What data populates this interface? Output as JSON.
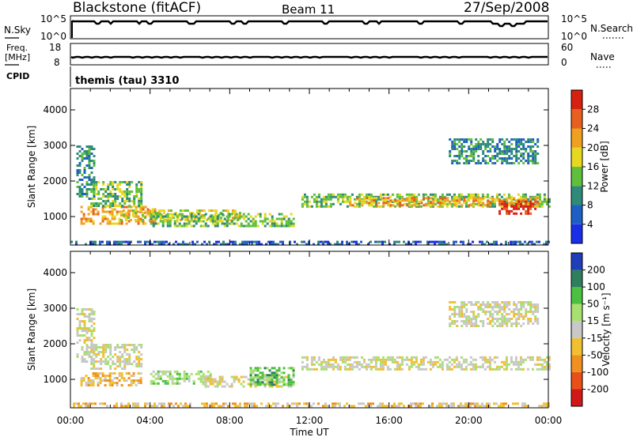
{
  "header": {
    "station": "Blackstone (fitACF)",
    "beam": "Beam 11",
    "date": "27/Sep/2008"
  },
  "top_panels": {
    "nsky_label": "N.Sky",
    "nsky_ticks": [
      "10^5",
      "10^0"
    ],
    "nsearch_label": "N.Search",
    "nsearch_ticks": [
      "10^5",
      "10^0"
    ],
    "freq_label_1": "Freq.",
    "freq_label_2": "[MHz]",
    "freq_ticks": [
      "18",
      "8"
    ],
    "nave_label": "Nave",
    "nave_ticks": [
      "60",
      "0"
    ],
    "cpid_label": "CPID",
    "cpid_text": "themis (tau) 3310"
  },
  "chart_data": [
    {
      "type": "heatmap",
      "name": "power",
      "ylabel": "Slant Range [km]",
      "xlabel": "Time UT",
      "ylim": [
        200,
        4600
      ],
      "yticks": [
        "1000",
        "2000",
        "3000",
        "4000"
      ],
      "xticks": [
        "00:00",
        "04:00",
        "08:00",
        "12:00",
        "16:00",
        "20:00",
        "00:00"
      ],
      "colorbar": {
        "label": "Power [dB]",
        "ticks": [
          "4",
          "8",
          "12",
          "16",
          "20",
          "24",
          "28"
        ],
        "colors": [
          "#1a2ee8",
          "#1f5fc4",
          "#2f8a7a",
          "#5fbf3c",
          "#e6d820",
          "#f0a020",
          "#e86020",
          "#d62010"
        ]
      },
      "regions": [
        {
          "t0": 0.3,
          "t1": 1.2,
          "r0": 1500,
          "r1": 3000,
          "level": 2
        },
        {
          "t0": 0.5,
          "t1": 4.2,
          "r0": 800,
          "r1": 1300,
          "level": 5
        },
        {
          "t0": 1.0,
          "t1": 3.6,
          "r0": 1300,
          "r1": 2000,
          "level": 3
        },
        {
          "t0": 2.5,
          "t1": 8.5,
          "r0": 900,
          "r1": 1200,
          "level": 4
        },
        {
          "t0": 4.0,
          "t1": 11.2,
          "r0": 750,
          "r1": 1100,
          "level": 3
        },
        {
          "t0": 11.6,
          "t1": 24.0,
          "r0": 1250,
          "r1": 1650,
          "level": 3
        },
        {
          "t0": 14.0,
          "t1": 23.5,
          "r0": 1300,
          "r1": 1550,
          "level": 5
        },
        {
          "t0": 21.5,
          "t1": 23.3,
          "r0": 1050,
          "r1": 1450,
          "level": 7
        },
        {
          "t0": 19.0,
          "t1": 23.5,
          "r0": 2500,
          "r1": 3200,
          "level": 2
        },
        {
          "t0": 0.0,
          "t1": 24.0,
          "r0": 220,
          "r1": 320,
          "level": 1
        }
      ]
    },
    {
      "type": "heatmap",
      "name": "velocity",
      "ylabel": "Slant Range [km]",
      "xlabel": "Time UT",
      "ylim": [
        200,
        4600
      ],
      "yticks": [
        "1000",
        "2000",
        "3000",
        "4000"
      ],
      "xticks": [
        "00:00",
        "04:00",
        "08:00",
        "12:00",
        "16:00",
        "20:00",
        "00:00"
      ],
      "colorbar": {
        "label": "Velocity [m s⁻¹]",
        "ticks": [
          "200",
          "100",
          "50",
          "15",
          "-15",
          "-50",
          "-100",
          "-200"
        ],
        "colors": [
          "#1f3fb8",
          "#2f7f5f",
          "#4cc040",
          "#a8e070",
          "#c8c8c8",
          "#f0c030",
          "#f09020",
          "#e85018",
          "#d01818"
        ]
      },
      "regions": [
        {
          "t0": 0.3,
          "t1": 1.2,
          "r0": 1500,
          "r1": 3000,
          "level": 4
        },
        {
          "t0": 0.5,
          "t1": 3.5,
          "r0": 800,
          "r1": 1200,
          "level": 5
        },
        {
          "t0": 1.0,
          "t1": 3.6,
          "r0": 1300,
          "r1": 2000,
          "level": 4
        },
        {
          "t0": 4.0,
          "t1": 7.0,
          "r0": 900,
          "r1": 1250,
          "level": 3
        },
        {
          "t0": 6.5,
          "t1": 11.2,
          "r0": 800,
          "r1": 1100,
          "level": 4
        },
        {
          "t0": 9.0,
          "t1": 11.2,
          "r0": 850,
          "r1": 1350,
          "level": 2
        },
        {
          "t0": 11.6,
          "t1": 24.0,
          "r0": 1250,
          "r1": 1650,
          "level": 4
        },
        {
          "t0": 19.0,
          "t1": 23.5,
          "r0": 2500,
          "r1": 3200,
          "level": 4
        },
        {
          "t0": 0.0,
          "t1": 24.0,
          "r0": 220,
          "r1": 350,
          "level": 5
        }
      ]
    }
  ]
}
